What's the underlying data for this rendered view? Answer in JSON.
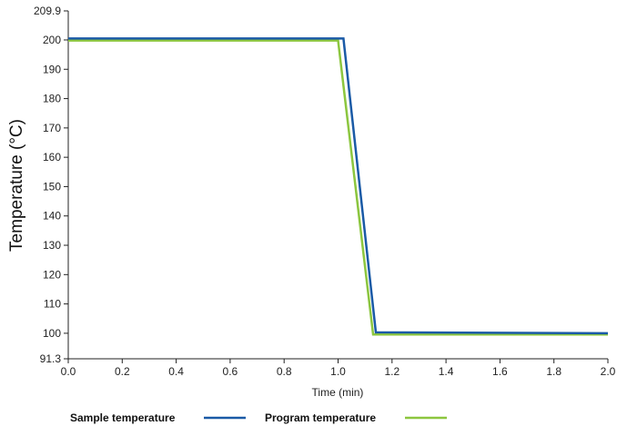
{
  "chart_data": {
    "type": "line",
    "title": "",
    "xlabel": "Time (min)",
    "ylabel": "Temperature (°C)",
    "xlim": [
      0.0,
      2.0
    ],
    "ylim": [
      91.3,
      209.9
    ],
    "x_ticks": [
      "0.0",
      "0.2",
      "0.4",
      "0.6",
      "0.8",
      "1.0",
      "1.2",
      "1.4",
      "1.6",
      "1.8",
      "2.0"
    ],
    "y_ticks": [
      "91.3",
      "100",
      "110",
      "120",
      "130",
      "140",
      "150",
      "160",
      "170",
      "180",
      "190",
      "200",
      "209.9"
    ],
    "grid": false,
    "legend_position": "bottom",
    "series": [
      {
        "name": "Sample temperature",
        "color": "#1a5aa6",
        "x": [
          0.0,
          1.02,
          1.14,
          2.0
        ],
        "y": [
          200.5,
          200.5,
          100.3,
          100.0
        ]
      },
      {
        "name": "Program temperature",
        "color": "#8cc63f",
        "x": [
          0.0,
          1.0,
          1.13,
          2.0
        ],
        "y": [
          199.8,
          199.8,
          99.6,
          99.6
        ]
      }
    ]
  }
}
